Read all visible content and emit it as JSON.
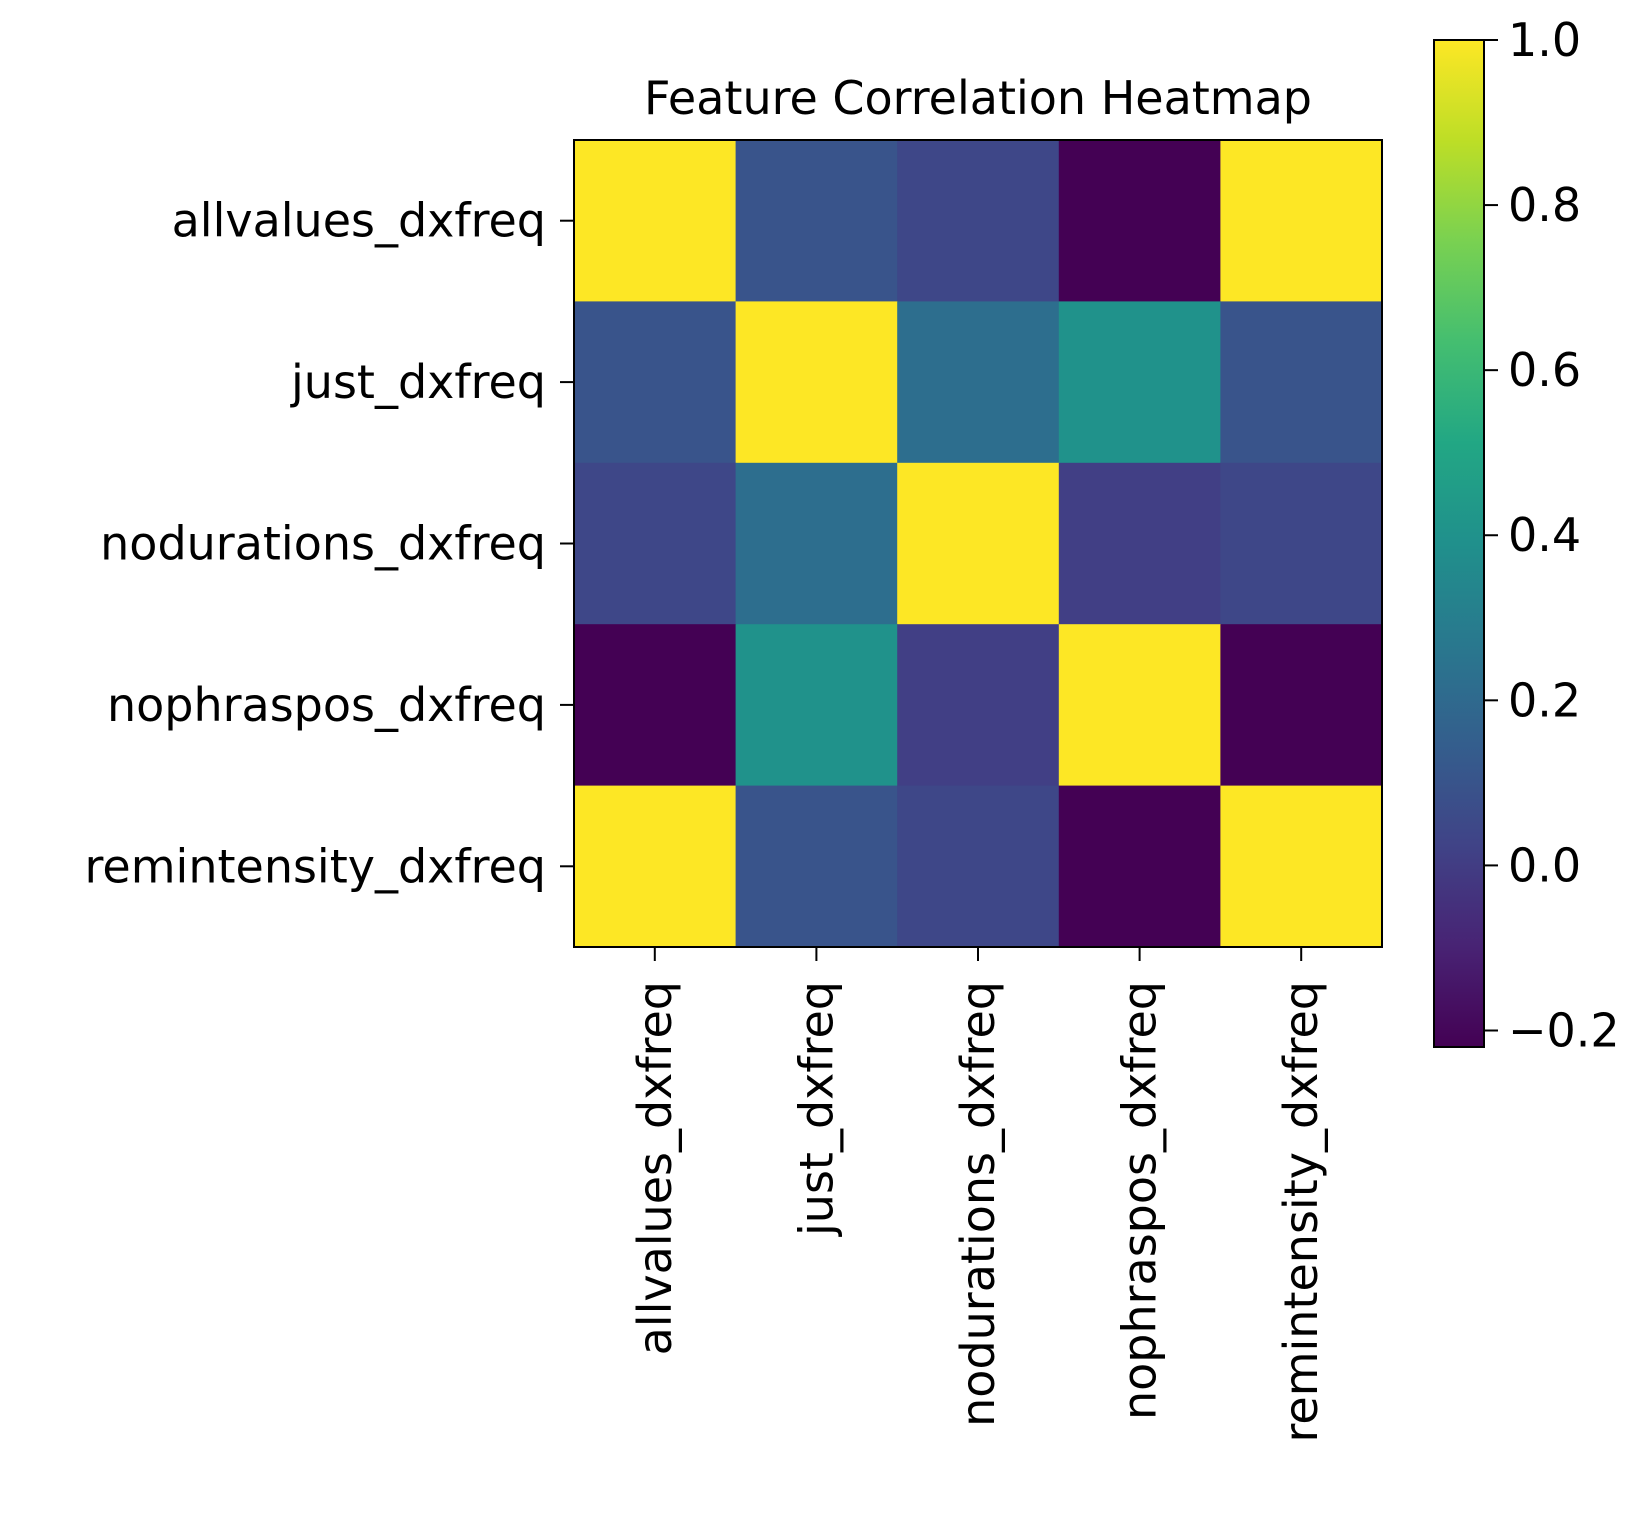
{
  "chart_data": {
    "type": "heatmap",
    "title": "Feature Correlation Heatmap",
    "xlabel": "",
    "ylabel": "",
    "rows": [
      "allvalues_dxfreq",
      "just_dxfreq",
      "nodurations_dxfreq",
      "nophraspos_dxfreq",
      "remintensity_dxfreq"
    ],
    "columns": [
      "allvalues_dxfreq",
      "just_dxfreq",
      "nodurations_dxfreq",
      "nophraspos_dxfreq",
      "remintensity_dxfreq"
    ],
    "values": [
      [
        1.0,
        0.1,
        0.04,
        -0.22,
        1.0
      ],
      [
        0.1,
        1.0,
        0.22,
        0.4,
        0.1
      ],
      [
        0.04,
        0.22,
        1.0,
        0.01,
        0.04
      ],
      [
        -0.22,
        0.4,
        0.01,
        1.0,
        -0.22
      ],
      [
        1.0,
        0.1,
        0.04,
        -0.22,
        1.0
      ]
    ],
    "colormap": "viridis",
    "colorbar": {
      "range": [
        -0.22,
        1.0
      ],
      "ticks": [
        1.0,
        0.8,
        0.6,
        0.4,
        0.2,
        0.0,
        -0.2
      ],
      "tick_labels": [
        "1.0",
        "0.8",
        "0.6",
        "0.4",
        "0.2",
        "0.0",
        "−0.2"
      ]
    }
  }
}
